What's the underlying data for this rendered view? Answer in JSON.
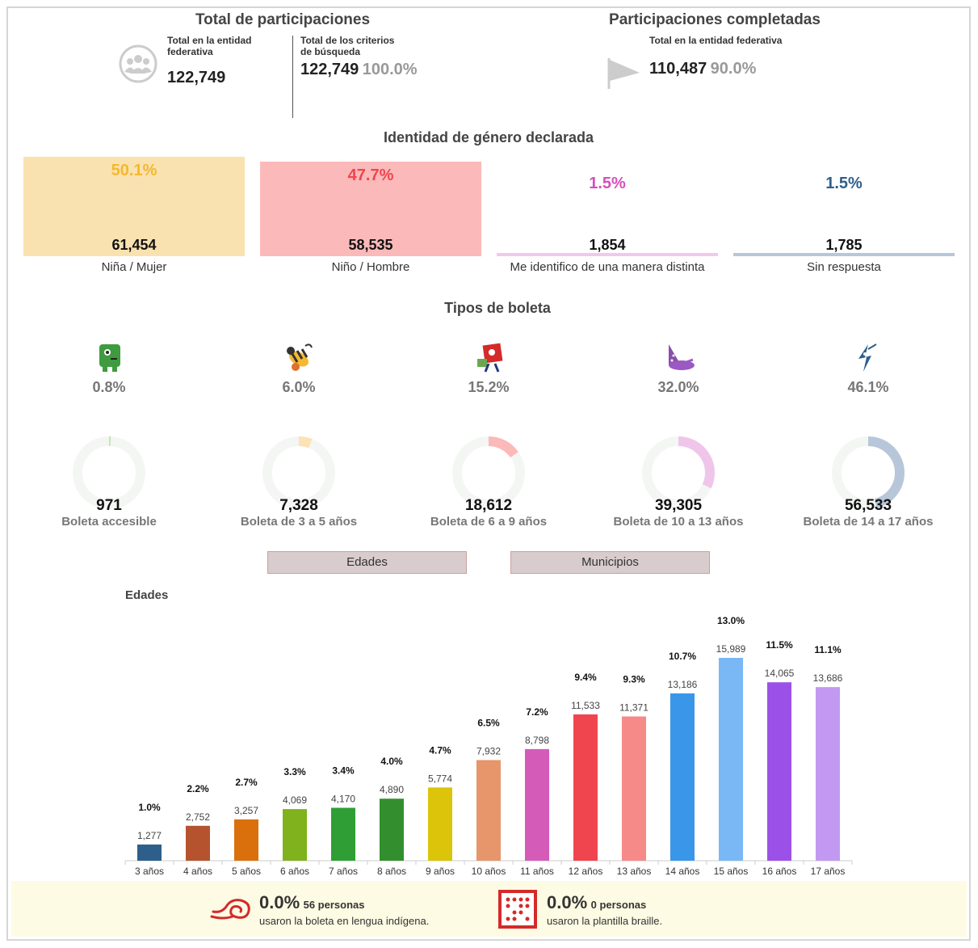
{
  "summary": {
    "total_title": "Total de participaciones",
    "entity_label": "Total en la entidad federativa",
    "entity_value": "122,749",
    "criteria_label": "Total de los criterios de búsqueda",
    "criteria_value": "122,749",
    "criteria_pct": "100.0%",
    "completed_title": "Participaciones completadas",
    "completed_label": "Total en la entidad federativa",
    "completed_value": "110,487",
    "completed_pct": "90.0%"
  },
  "gender": {
    "title": "Identidad de género declarada",
    "items": [
      {
        "label": "Niña / Mujer",
        "value": "61,454",
        "pct": "50.1%",
        "fill": 1.0,
        "color": "#f9e2b0",
        "text_color": "#f5b82e"
      },
      {
        "label": "Niño / Hombre",
        "value": "58,535",
        "pct": "47.7%",
        "fill": 0.952,
        "color": "#fbb9b9",
        "text_color": "#f0454f"
      },
      {
        "label": "Me identifico de una manera distinta",
        "value": "1,854",
        "pct": "1.5%",
        "fill": 0.03,
        "color": "#f2c8ea",
        "text_color": "#d64fbd"
      },
      {
        "label": "Sin respuesta",
        "value": "1,785",
        "pct": "1.5%",
        "fill": 0.03,
        "color": "#b7c7d9",
        "text_color": "#2e5f8a"
      }
    ]
  },
  "ballots": {
    "title": "Tipos de boleta",
    "items": [
      {
        "label": "Boleta accesible",
        "value": "971",
        "pct": "0.8%",
        "fraction": 0.008,
        "color": "#c2e5b0",
        "icon": "green-monster-icon"
      },
      {
        "label": "Boleta de 3 a 5 años",
        "value": "7,328",
        "pct": "6.0%",
        "fraction": 0.06,
        "color": "#fbe3b5",
        "icon": "bee-icon"
      },
      {
        "label": "Boleta de 6 a 9 años",
        "value": "18,612",
        "pct": "15.2%",
        "fraction": 0.152,
        "color": "#fbb9b9",
        "icon": "red-robot-icon"
      },
      {
        "label": "Boleta de 10 a 13 años",
        "value": "39,305",
        "pct": "32.0%",
        "fraction": 0.32,
        "color": "#efc6ea",
        "icon": "purple-wizard-icon"
      },
      {
        "label": "Boleta de 14 a 17 años",
        "value": "56,533",
        "pct": "46.1%",
        "fraction": 0.461,
        "color": "#b7c7d9",
        "icon": "bird-icon"
      }
    ]
  },
  "tabs": {
    "ages": "Edades",
    "municipalities": "Municipios"
  },
  "chart_data": {
    "type": "bar",
    "title": "Edades",
    "categories": [
      "3 años",
      "4 años",
      "5 años",
      "6 años",
      "7 años",
      "8 años",
      "9 años",
      "10 años",
      "11 años",
      "12 años",
      "13 años",
      "14 años",
      "15 años",
      "16 años",
      "17 años"
    ],
    "values": [
      1277,
      2752,
      3257,
      4069,
      4170,
      4890,
      5774,
      7932,
      8798,
      11533,
      11371,
      13186,
      15989,
      14065,
      13686
    ],
    "value_labels": [
      "1,277",
      "2,752",
      "3,257",
      "4,069",
      "4,170",
      "4,890",
      "5,774",
      "7,932",
      "8,798",
      "11,533",
      "11,371",
      "13,186",
      "15,989",
      "14,065",
      "13,686"
    ],
    "percents": [
      "1.0%",
      "2.2%",
      "2.7%",
      "3.3%",
      "3.4%",
      "4.0%",
      "4.7%",
      "6.5%",
      "7.2%",
      "9.4%",
      "9.3%",
      "10.7%",
      "13.0%",
      "11.5%",
      "11.1%"
    ],
    "colors": [
      "#2e5f8a",
      "#b5532f",
      "#d9700c",
      "#7fb21d",
      "#2f9e35",
      "#338f2e",
      "#dcc40a",
      "#e6966a",
      "#d55bb9",
      "#f0454f",
      "#f58a88",
      "#3a96e8",
      "#7ab8f5",
      "#9b51e8",
      "#c299f0"
    ],
    "ylim": [
      0,
      16000
    ]
  },
  "footer": {
    "indigenous_pct": "0.0%",
    "indigenous_count": "56 personas",
    "indigenous_label": "usaron la boleta en lengua indígena.",
    "braille_pct": "0.0%",
    "braille_count": "0 personas",
    "braille_label": "usaron la plantilla braille."
  }
}
